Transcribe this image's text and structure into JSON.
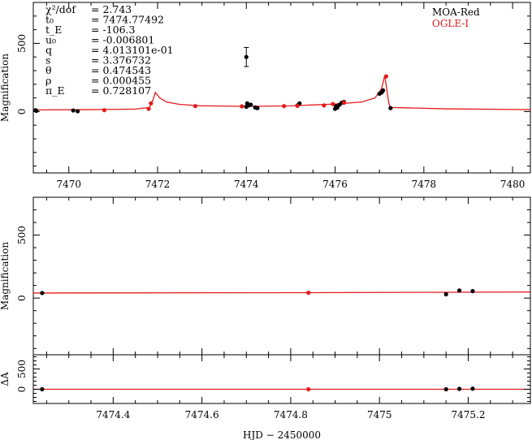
{
  "chart_data": [
    {
      "type": "scatter",
      "panel": "top",
      "ylabel": "Magnification",
      "xlim": [
        7469.2,
        7480.4
      ],
      "ylim": [
        -450,
        800
      ],
      "xticks": [
        7470,
        7472,
        7474,
        7476,
        7478,
        7480
      ],
      "yticks": [
        0,
        500
      ],
      "grid": false,
      "legend_position": "top-right",
      "legend": [
        {
          "label": "MOA-Red",
          "color": "#000000"
        },
        {
          "label": "OGLE-I",
          "color": "#e41a1c"
        }
      ],
      "annotations": [
        {
          "label": "χ²/dof",
          "value": "= 2.743"
        },
        {
          "label": "t₀",
          "value": "= 7474.77492"
        },
        {
          "label": "t_E",
          "value": "= -106.3"
        },
        {
          "label": "u₀",
          "value": "= -0.006801"
        },
        {
          "label": "q",
          "value": "= 4.013101e-01"
        },
        {
          "label": "s",
          "value": "= 3.376732"
        },
        {
          "label": "θ",
          "value": "= 0.474543"
        },
        {
          "label": "ρ",
          "value": "= 0.000455"
        },
        {
          "label": "π_E",
          "value": "= 0.728107"
        }
      ],
      "model_curve": {
        "color": "#e41a1c",
        "x": [
          7469.2,
          7470.5,
          7471.5,
          7471.82,
          7471.88,
          7471.95,
          7472.05,
          7472.2,
          7472.5,
          7473,
          7474,
          7475,
          7476,
          7476.6,
          7476.9,
          7477.05,
          7477.12,
          7477.17,
          7477.21,
          7477.25,
          7477.5,
          7478.5,
          7480.4
        ],
        "y": [
          12,
          14,
          18,
          30,
          70,
          140,
          100,
          70,
          52,
          42,
          38,
          42,
          55,
          70,
          100,
          170,
          265,
          150,
          60,
          30,
          28,
          20,
          14
        ]
      },
      "series": [
        {
          "name": "MOA-Red",
          "color": "#000000",
          "x": [
            7469.25,
            7469.27,
            7470.1,
            7470.2,
            7474.0,
            7474.02,
            7474.05,
            7474.1,
            7474.2,
            7474.25,
            7475.15,
            7475.2,
            7476.0,
            7476.02,
            7476.05,
            7476.1,
            7476.15,
            7476.2,
            7477.0,
            7477.05,
            7477.08,
            7477.25
          ],
          "y": [
            10,
            5,
            8,
            2,
            35,
            60,
            45,
            50,
            30,
            25,
            45,
            60,
            20,
            40,
            30,
            50,
            65,
            70,
            130,
            140,
            155,
            25
          ],
          "errorbars": [
            {
              "x": 7474.0,
              "y": 400,
              "err": 70
            }
          ]
        },
        {
          "name": "OGLE-I",
          "color": "#e41a1c",
          "x": [
            7470.8,
            7471.8,
            7471.85,
            7472.85,
            7473.9,
            7474.85,
            7475.15,
            7475.75,
            7475.95,
            7476.2,
            7477.15
          ],
          "y": [
            10,
            20,
            60,
            40,
            38,
            40,
            42,
            45,
            55,
            65,
            258
          ]
        }
      ]
    },
    {
      "type": "scatter",
      "panel": "middle",
      "ylabel": "Magnification",
      "xlim": [
        7474.22,
        7475.34
      ],
      "ylim": [
        -450,
        800
      ],
      "yticks": [
        0,
        500
      ],
      "grid": false,
      "model_curve": {
        "color": "#e41a1c",
        "x": [
          7474.22,
          7474.84,
          7475.34
        ],
        "y": [
          40,
          43,
          48
        ]
      },
      "series": [
        {
          "name": "MOA-Red",
          "color": "#000000",
          "x": [
            7474.24,
            7475.15,
            7475.18,
            7475.21
          ],
          "y": [
            40,
            30,
            60,
            55
          ]
        },
        {
          "name": "OGLE-I",
          "color": "#e41a1c",
          "x": [
            7474.84
          ],
          "y": [
            42
          ]
        }
      ]
    },
    {
      "type": "scatter",
      "panel": "bottom",
      "ylabel": "ΔA",
      "xlabel": "HJD − 2450000",
      "xlim": [
        7474.22,
        7475.34
      ],
      "ylim": [
        -350,
        850
      ],
      "xticks": [
        7474.4,
        7474.6,
        7474.8,
        7475,
        7475.2
      ],
      "yticks": [
        0,
        500
      ],
      "grid": false,
      "model_curve": {
        "color": "#e41a1c",
        "x": [
          7474.22,
          7475.34
        ],
        "y": [
          0,
          0
        ]
      },
      "series": [
        {
          "name": "MOA-Red",
          "color": "#000000",
          "x": [
            7474.24,
            7475.15,
            7475.18,
            7475.21
          ],
          "y": [
            0,
            0,
            10,
            15
          ]
        },
        {
          "name": "OGLE-I",
          "color": "#e41a1c",
          "x": [
            7474.84
          ],
          "y": [
            0
          ]
        }
      ]
    }
  ]
}
